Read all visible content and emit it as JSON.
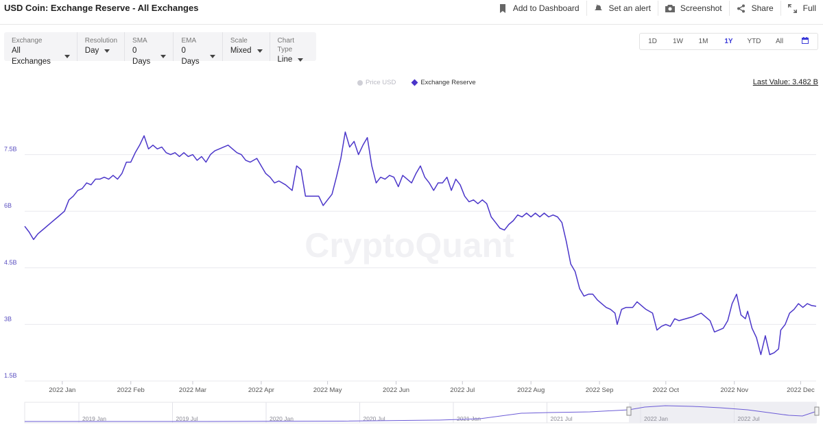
{
  "header": {
    "title": "USD Coin: Exchange Reserve - All Exchanges",
    "actions": [
      {
        "label": "Add to Dashboard",
        "icon": "bookmark-icon"
      },
      {
        "label": "Set an alert",
        "icon": "bell-icon"
      },
      {
        "label": "Screenshot",
        "icon": "camera-icon"
      },
      {
        "label": "Share",
        "icon": "share-icon"
      },
      {
        "label": "Full",
        "icon": "expand-icon"
      }
    ]
  },
  "controls": [
    {
      "label": "Exchange",
      "value": "All Exchanges"
    },
    {
      "label": "Resolution",
      "value": "Day"
    },
    {
      "label": "SMA",
      "value": "0 Days"
    },
    {
      "label": "EMA",
      "value": "0 Days"
    },
    {
      "label": "Scale",
      "value": "Mixed"
    },
    {
      "label": "Chart Type",
      "value": "Line"
    }
  ],
  "ranges": [
    "1D",
    "1W",
    "1M",
    "1Y",
    "YTD",
    "All"
  ],
  "active_range": "1Y",
  "legend": {
    "price": "Price USD",
    "reserve": "Exchange Reserve"
  },
  "last_value": "Last Value: 3.482 B",
  "watermark": "CryptoQuant",
  "colors": {
    "line": "#4a35c9",
    "grid": "#e8e8ee",
    "axis_text": "#5a4fc0",
    "active_range": "#3a3ad9"
  },
  "chart_data": {
    "type": "line",
    "title": "USD Coin: Exchange Reserve - All Exchanges",
    "ylim": [
      1.5,
      9.0
    ],
    "yticks": [
      1.5,
      3,
      4.5,
      6,
      7.5
    ],
    "ytick_labels": [
      "1.5B",
      "3B",
      "4.5B",
      "6B",
      "7.5B"
    ],
    "x_range": [
      "2021-12-15",
      "2022-12-08"
    ],
    "x_ticks": [
      {
        "date": "2022-01-01",
        "label": "2022 Jan"
      },
      {
        "date": "2022-02-01",
        "label": "2022 Feb"
      },
      {
        "date": "2022-03-01",
        "label": "2022 Mar"
      },
      {
        "date": "2022-04-01",
        "label": "2022 Apr"
      },
      {
        "date": "2022-05-01",
        "label": "2022 May"
      },
      {
        "date": "2022-06-01",
        "label": "2022 Jun"
      },
      {
        "date": "2022-07-01",
        "label": "2022 Jul"
      },
      {
        "date": "2022-08-01",
        "label": "2022 Aug"
      },
      {
        "date": "2022-09-01",
        "label": "2022 Sep"
      },
      {
        "date": "2022-10-01",
        "label": "2022 Oct"
      },
      {
        "date": "2022-11-01",
        "label": "2022 Nov"
      },
      {
        "date": "2022-12-01",
        "label": "2022 Dec"
      }
    ],
    "series": [
      {
        "name": "Exchange Reserve",
        "unit": "B",
        "points": [
          [
            "2021-12-15",
            5.6
          ],
          [
            "2021-12-17",
            5.45
          ],
          [
            "2021-12-19",
            5.25
          ],
          [
            "2021-12-21",
            5.4
          ],
          [
            "2021-12-24",
            5.55
          ],
          [
            "2021-12-27",
            5.7
          ],
          [
            "2021-12-30",
            5.85
          ],
          [
            "2022-01-02",
            6.0
          ],
          [
            "2022-01-04",
            6.3
          ],
          [
            "2022-01-06",
            6.4
          ],
          [
            "2022-01-08",
            6.55
          ],
          [
            "2022-01-10",
            6.6
          ],
          [
            "2022-01-12",
            6.75
          ],
          [
            "2022-01-14",
            6.7
          ],
          [
            "2022-01-16",
            6.85
          ],
          [
            "2022-01-18",
            6.85
          ],
          [
            "2022-01-20",
            6.9
          ],
          [
            "2022-01-22",
            6.85
          ],
          [
            "2022-01-24",
            6.95
          ],
          [
            "2022-01-26",
            6.85
          ],
          [
            "2022-01-28",
            7.0
          ],
          [
            "2022-01-30",
            7.3
          ],
          [
            "2022-02-01",
            7.3
          ],
          [
            "2022-02-03",
            7.55
          ],
          [
            "2022-02-05",
            7.75
          ],
          [
            "2022-02-07",
            8.0
          ],
          [
            "2022-02-09",
            7.65
          ],
          [
            "2022-02-11",
            7.75
          ],
          [
            "2022-02-13",
            7.65
          ],
          [
            "2022-02-15",
            7.7
          ],
          [
            "2022-02-17",
            7.55
          ],
          [
            "2022-02-19",
            7.5
          ],
          [
            "2022-02-21",
            7.55
          ],
          [
            "2022-02-23",
            7.45
          ],
          [
            "2022-02-25",
            7.55
          ],
          [
            "2022-02-27",
            7.45
          ],
          [
            "2022-03-01",
            7.5
          ],
          [
            "2022-03-03",
            7.35
          ],
          [
            "2022-03-05",
            7.45
          ],
          [
            "2022-03-07",
            7.3
          ],
          [
            "2022-03-09",
            7.5
          ],
          [
            "2022-03-11",
            7.6
          ],
          [
            "2022-03-13",
            7.65
          ],
          [
            "2022-03-15",
            7.7
          ],
          [
            "2022-03-17",
            7.75
          ],
          [
            "2022-03-19",
            7.65
          ],
          [
            "2022-03-21",
            7.55
          ],
          [
            "2022-03-23",
            7.5
          ],
          [
            "2022-03-25",
            7.35
          ],
          [
            "2022-03-27",
            7.3
          ],
          [
            "2022-03-30",
            7.4
          ],
          [
            "2022-04-01",
            7.2
          ],
          [
            "2022-04-03",
            7.0
          ],
          [
            "2022-04-05",
            6.9
          ],
          [
            "2022-04-07",
            6.75
          ],
          [
            "2022-04-09",
            6.8
          ],
          [
            "2022-04-12",
            6.7
          ],
          [
            "2022-04-15",
            6.55
          ],
          [
            "2022-04-17",
            7.2
          ],
          [
            "2022-04-19",
            7.1
          ],
          [
            "2022-04-21",
            6.4
          ],
          [
            "2022-04-24",
            6.4
          ],
          [
            "2022-04-27",
            6.4
          ],
          [
            "2022-04-29",
            6.15
          ],
          [
            "2022-05-01",
            6.3
          ],
          [
            "2022-05-03",
            6.45
          ],
          [
            "2022-05-05",
            6.9
          ],
          [
            "2022-05-07",
            7.4
          ],
          [
            "2022-05-09",
            8.1
          ],
          [
            "2022-05-11",
            7.7
          ],
          [
            "2022-05-13",
            7.85
          ],
          [
            "2022-05-15",
            7.5
          ],
          [
            "2022-05-17",
            7.75
          ],
          [
            "2022-05-19",
            7.95
          ],
          [
            "2022-05-21",
            7.2
          ],
          [
            "2022-05-23",
            6.75
          ],
          [
            "2022-05-25",
            6.9
          ],
          [
            "2022-05-27",
            6.85
          ],
          [
            "2022-05-29",
            6.95
          ],
          [
            "2022-05-31",
            6.9
          ],
          [
            "2022-06-02",
            6.65
          ],
          [
            "2022-06-04",
            6.95
          ],
          [
            "2022-06-06",
            6.85
          ],
          [
            "2022-06-08",
            6.75
          ],
          [
            "2022-06-10",
            7.0
          ],
          [
            "2022-06-12",
            7.2
          ],
          [
            "2022-06-14",
            6.9
          ],
          [
            "2022-06-16",
            6.75
          ],
          [
            "2022-06-18",
            6.55
          ],
          [
            "2022-06-20",
            6.75
          ],
          [
            "2022-06-22",
            6.75
          ],
          [
            "2022-06-24",
            6.9
          ],
          [
            "2022-06-26",
            6.55
          ],
          [
            "2022-06-28",
            6.85
          ],
          [
            "2022-06-30",
            6.7
          ],
          [
            "2022-07-02",
            6.4
          ],
          [
            "2022-07-04",
            6.25
          ],
          [
            "2022-07-06",
            6.3
          ],
          [
            "2022-07-08",
            6.2
          ],
          [
            "2022-07-10",
            6.3
          ],
          [
            "2022-07-12",
            6.2
          ],
          [
            "2022-07-14",
            5.85
          ],
          [
            "2022-07-16",
            5.7
          ],
          [
            "2022-07-18",
            5.55
          ],
          [
            "2022-07-20",
            5.5
          ],
          [
            "2022-07-22",
            5.65
          ],
          [
            "2022-07-24",
            5.75
          ],
          [
            "2022-07-26",
            5.9
          ],
          [
            "2022-07-28",
            5.85
          ],
          [
            "2022-07-30",
            5.95
          ],
          [
            "2022-08-01",
            5.85
          ],
          [
            "2022-08-03",
            5.95
          ],
          [
            "2022-08-05",
            5.85
          ],
          [
            "2022-08-07",
            5.95
          ],
          [
            "2022-08-09",
            5.85
          ],
          [
            "2022-08-11",
            5.9
          ],
          [
            "2022-08-13",
            5.85
          ],
          [
            "2022-08-15",
            5.7
          ],
          [
            "2022-08-17",
            5.2
          ],
          [
            "2022-08-19",
            4.6
          ],
          [
            "2022-08-21",
            4.4
          ],
          [
            "2022-08-23",
            3.95
          ],
          [
            "2022-08-25",
            3.75
          ],
          [
            "2022-08-27",
            3.8
          ],
          [
            "2022-08-29",
            3.8
          ],
          [
            "2022-08-31",
            3.65
          ],
          [
            "2022-09-02",
            3.55
          ],
          [
            "2022-09-04",
            3.45
          ],
          [
            "2022-09-06",
            3.4
          ],
          [
            "2022-09-08",
            3.3
          ],
          [
            "2022-09-09",
            3.0
          ],
          [
            "2022-09-11",
            3.4
          ],
          [
            "2022-09-13",
            3.45
          ],
          [
            "2022-09-16",
            3.45
          ],
          [
            "2022-09-18",
            3.6
          ],
          [
            "2022-09-20",
            3.5
          ],
          [
            "2022-09-22",
            3.4
          ],
          [
            "2022-09-25",
            3.3
          ],
          [
            "2022-09-27",
            2.85
          ],
          [
            "2022-09-29",
            2.95
          ],
          [
            "2022-10-01",
            3.0
          ],
          [
            "2022-10-03",
            2.95
          ],
          [
            "2022-10-05",
            3.15
          ],
          [
            "2022-10-07",
            3.1
          ],
          [
            "2022-10-10",
            3.15
          ],
          [
            "2022-10-13",
            3.2
          ],
          [
            "2022-10-15",
            3.25
          ],
          [
            "2022-10-17",
            3.3
          ],
          [
            "2022-10-19",
            3.2
          ],
          [
            "2022-10-21",
            3.1
          ],
          [
            "2022-10-23",
            2.8
          ],
          [
            "2022-10-25",
            2.85
          ],
          [
            "2022-10-27",
            2.9
          ],
          [
            "2022-10-29",
            3.1
          ],
          [
            "2022-10-31",
            3.55
          ],
          [
            "2022-11-02",
            3.8
          ],
          [
            "2022-11-04",
            3.25
          ],
          [
            "2022-11-06",
            3.15
          ],
          [
            "2022-11-07",
            3.35
          ],
          [
            "2022-11-09",
            2.9
          ],
          [
            "2022-11-11",
            2.65
          ],
          [
            "2022-11-13",
            2.2
          ],
          [
            "2022-11-15",
            2.7
          ],
          [
            "2022-11-17",
            2.2
          ],
          [
            "2022-11-19",
            2.25
          ],
          [
            "2022-11-21",
            2.35
          ],
          [
            "2022-11-22",
            2.85
          ],
          [
            "2022-11-24",
            3.0
          ],
          [
            "2022-11-26",
            3.3
          ],
          [
            "2022-11-28",
            3.4
          ],
          [
            "2022-11-30",
            3.55
          ],
          [
            "2022-12-02",
            3.45
          ],
          [
            "2022-12-04",
            3.55
          ],
          [
            "2022-12-06",
            3.5
          ],
          [
            "2022-12-08",
            3.482
          ]
        ]
      }
    ],
    "navigator": {
      "ticks": [
        "2019 Jan",
        "2019 Jul",
        "2020 Jan",
        "2020 Jul",
        "2021 Jan",
        "2021 Jul",
        "2022 Jan",
        "2022 Jul"
      ]
    },
    "grid": true,
    "legend_position": "top-center"
  }
}
